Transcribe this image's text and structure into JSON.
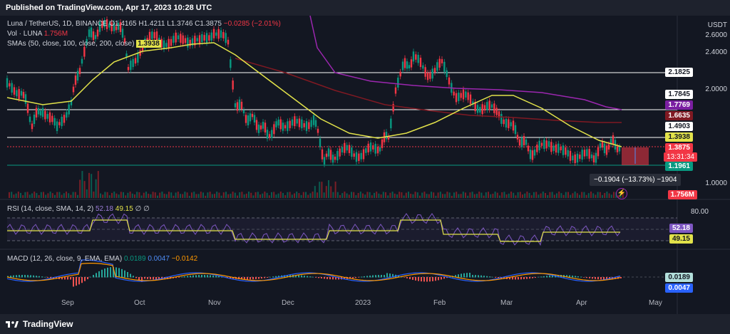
{
  "header": {
    "text": "Published on TradingView.com, Apr 17, 2023 10:28 UTC"
  },
  "legend": {
    "symbol": "Luna / TetherUS, 1D, BINANCE",
    "o": "O1.4165",
    "h": "H1.4211",
    "l": "L1.3746",
    "c": "C1.3875",
    "change": "−0.0285 (−2.01%)",
    "vol_label": "Vol · LUNA",
    "vol_value": "1.756M",
    "sma_label": "SMAs (50, close, 100, close, 200, close)",
    "sma_value": "1.3938",
    "rsi_label": "RSI (14, close, SMA, 14, 2)",
    "rsi_value": "52.18",
    "rsi_sma": "49.15",
    "rsi_extra": "∅ ∅",
    "macd_label": "MACD (12, 26, close, 9, EMA, EMA)",
    "macd_value": "0.0189",
    "macd_signal": "0.0047",
    "macd_hist": "−0.0142"
  },
  "price_axis": {
    "currency": "USDT",
    "ticks": [
      "2.6000",
      "2.4000",
      "2.0000",
      "1.0000"
    ],
    "tags": {
      "p2_1825": "2.1825",
      "p1_7845": "1.7845",
      "p1_7769": "1.7769",
      "p1_6635": "1.6635",
      "p1_4903": "1.4903",
      "p1_3938": "1.3938",
      "p1_3875": "1.3875",
      "countdown": "13:31:34",
      "p1_1961": "1.1961",
      "vol": "1.756M"
    }
  },
  "rsi_axis": {
    "tick": "80.00",
    "value": "52.18",
    "sma": "49.15"
  },
  "macd_axis": {
    "value": "0.0189",
    "signal": "0.0047"
  },
  "tooltip": "−0.1904 (−13.73%) −1904",
  "time_axis": [
    "Sep",
    "Oct",
    "Nov",
    "Dec",
    "2023",
    "Feb",
    "Mar",
    "Apr",
    "May"
  ],
  "footer": {
    "brand": "TradingView"
  },
  "colors": {
    "bg": "#131722",
    "up": "#089981",
    "down": "#f23645",
    "sma50": "#e2e24a",
    "sma100": "#801922",
    "sma200": "#9c27b0"
  }
}
